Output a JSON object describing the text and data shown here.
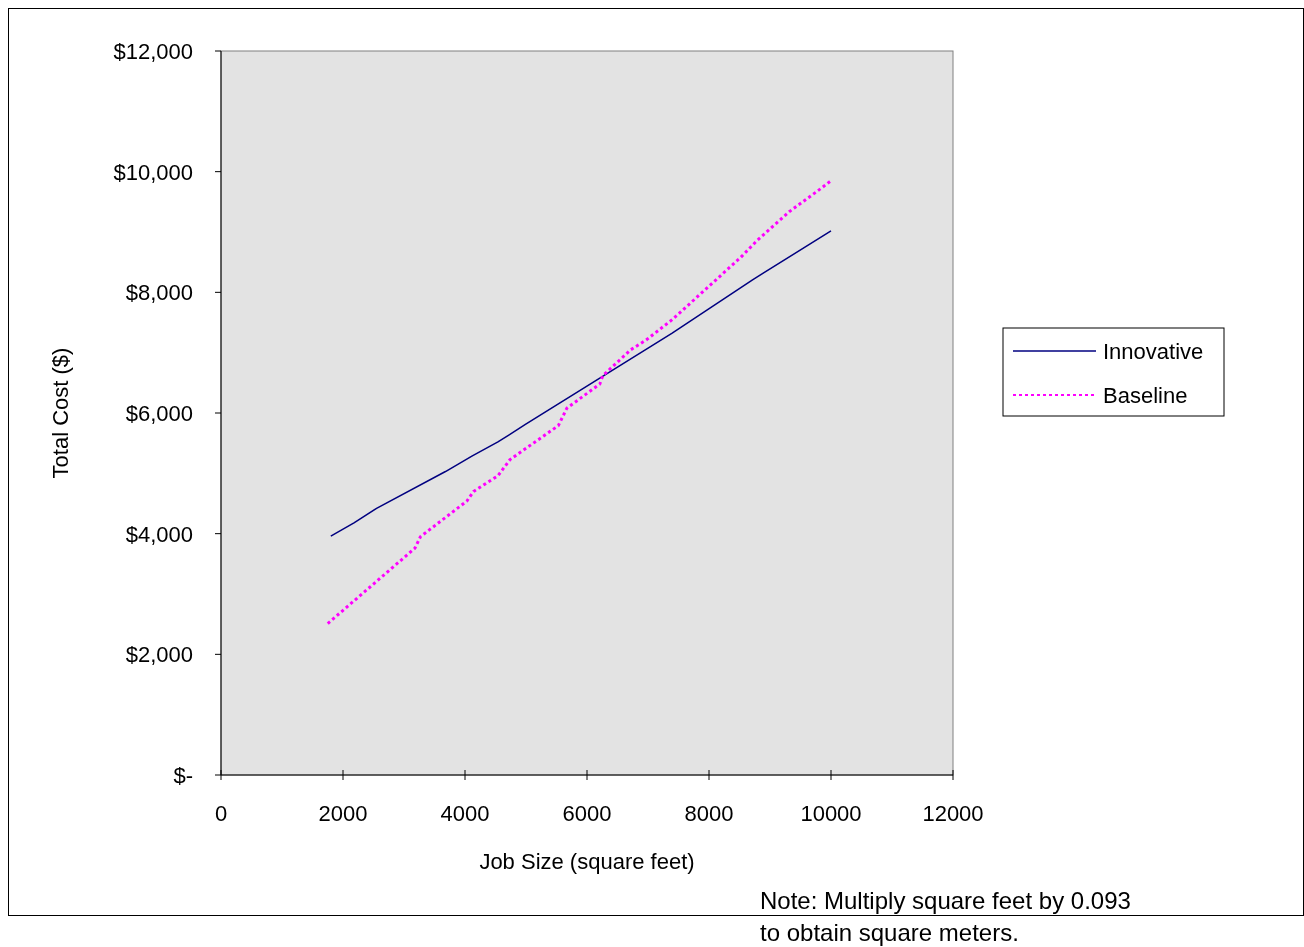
{
  "chart_data": {
    "type": "line",
    "xlabel": "Job Size (square feet)",
    "ylabel": "Total Cost ($)",
    "xlim": [
      0,
      12000
    ],
    "xticks": [
      0,
      2000,
      4000,
      6000,
      8000,
      10000,
      12000
    ],
    "ylim": [
      0,
      12000
    ],
    "yticks": [
      {
        "value": 0,
        "label": "$-"
      },
      {
        "value": 2000,
        "label": "$2,000"
      },
      {
        "value": 4000,
        "label": "$4,000"
      },
      {
        "value": 6000,
        "label": "$6,000"
      },
      {
        "value": 8000,
        "label": "$8,000"
      },
      {
        "value": 10000,
        "label": "$10,000"
      },
      {
        "value": 12000,
        "label": "$12,000"
      }
    ],
    "grid": false,
    "legend": "right",
    "marker": "none",
    "annotations": [
      "Note: Multiply square feet by 0.093 to obtain square meters."
    ],
    "series": [
      {
        "name": "Innovative",
        "color": "#000080",
        "line_style": "solid",
        "x": [
          1800,
          2180,
          2550,
          3680,
          4120,
          4540,
          4990,
          7390,
          8720,
          10000
        ],
        "values": [
          3960,
          4180,
          4420,
          5030,
          5290,
          5520,
          5810,
          7320,
          8210,
          9020
        ]
      },
      {
        "name": "Baseline",
        "color": "#ff00ff",
        "line_style": "dotted",
        "x": [
          1750,
          3180,
          3270,
          4030,
          4140,
          4540,
          4740,
          5530,
          5670,
          6210,
          6260,
          6720,
          6970,
          7400,
          8520,
          8780,
          9320,
          9820,
          10000
        ],
        "values": [
          2510,
          3760,
          3950,
          4540,
          4700,
          4960,
          5230,
          5790,
          6080,
          6480,
          6620,
          7050,
          7210,
          7550,
          8580,
          8850,
          9340,
          9710,
          9850
        ]
      }
    ]
  }
}
